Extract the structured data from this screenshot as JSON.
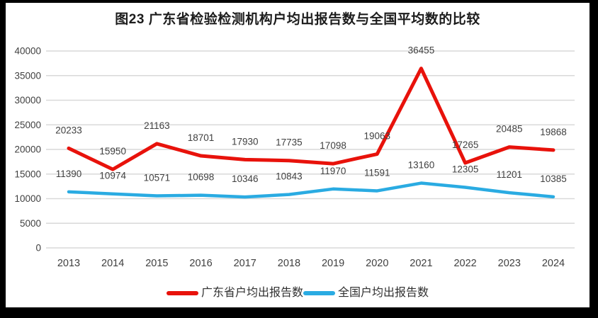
{
  "chart_data": {
    "type": "line",
    "title": "图23  广东省检验检测机构户均出报告数与全国平均数的比较",
    "categories": [
      "2013",
      "2014",
      "2015",
      "2016",
      "2017",
      "2018",
      "2019",
      "2020",
      "2021",
      "2022",
      "2023",
      "2024"
    ],
    "series": [
      {
        "name": "广东省户均出报告数",
        "color": "#e8120b",
        "values": [
          20233,
          15950,
          21163,
          18701,
          17930,
          17735,
          17098,
          19063,
          36455,
          17265,
          20485,
          19868
        ]
      },
      {
        "name": "全国户均出报告数",
        "color": "#2aabe2",
        "values": [
          11390,
          10974,
          10571,
          10698,
          10346,
          10843,
          11970,
          11591,
          13160,
          12305,
          11201,
          10385
        ]
      }
    ],
    "ylim": [
      0,
      40000
    ],
    "yticks": [
      0,
      5000,
      10000,
      15000,
      20000,
      25000,
      30000,
      35000,
      40000
    ],
    "grid": "horizontal",
    "gridline_color": "#d9d9d9",
    "data_labels": true,
    "label_color": "#404040",
    "legend_position": "bottom",
    "frame_color": "#000000"
  }
}
